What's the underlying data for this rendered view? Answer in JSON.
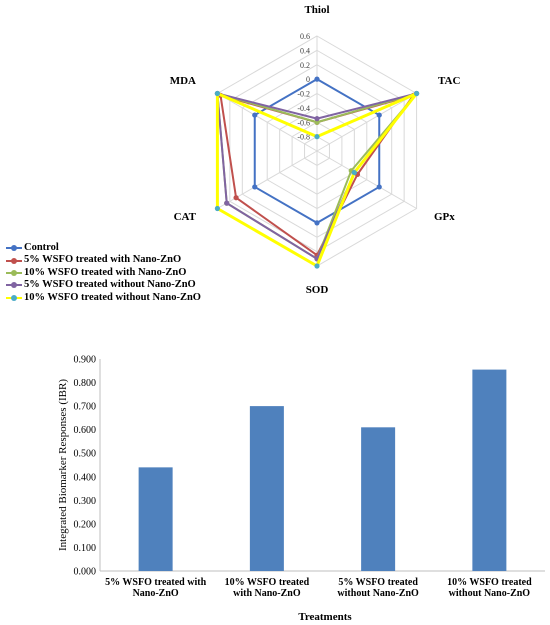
{
  "colors": {
    "control": "#4472C4",
    "nano5": "#C0504D",
    "nano10": "#9BBB59",
    "without5": "#8064A2",
    "without10": "#FFFF00",
    "marker": "#4BACC6",
    "bar": "#4F81BD",
    "grid": "#D9D9D9"
  },
  "chart_data": [
    {
      "type": "radar",
      "axes": [
        "Thiol",
        "TAC",
        "GPx",
        "SOD",
        "CAT",
        "MDA"
      ],
      "ticks": [
        "0.6",
        "0.4",
        "0.2",
        "0",
        "-0.2",
        "-0.4",
        "-0.6",
        "-0.8"
      ],
      "rlim": [
        -1,
        0.6
      ],
      "legend_position": "bottom-left",
      "series": [
        {
          "name": "Control",
          "values": [
            0,
            0,
            0,
            0,
            0,
            0
          ]
        },
        {
          "name": "5% WSFO treated with Nano-ZnO",
          "values": [
            -0.6,
            0.55,
            -0.35,
            0.45,
            0.3,
            0.55
          ]
        },
        {
          "name": "10% WSFO treated with Nano-ZnO",
          "values": [
            -0.6,
            0.6,
            -0.45,
            0.5,
            0.45,
            0.6
          ]
        },
        {
          "name": "5% WSFO treated without Nano-ZnO",
          "values": [
            -0.55,
            0.6,
            -0.4,
            0.5,
            0.45,
            0.6
          ]
        },
        {
          "name": "10% WSFO treated without Nano-ZnO",
          "values": [
            -0.8,
            0.6,
            -0.4,
            0.6,
            0.6,
            0.6
          ]
        }
      ]
    },
    {
      "type": "bar",
      "categories": [
        [
          "5% WSFO treated with",
          "Nano-ZnO"
        ],
        [
          "10% WSFO treated",
          "with Nano-ZnO"
        ],
        [
          "5% WSFO treated",
          "without Nano-ZnO"
        ],
        [
          "10% WSFO treated",
          "without Nano-ZnO"
        ]
      ],
      "values": [
        0.44,
        0.7,
        0.61,
        0.855
      ],
      "xlabel": "Treatments",
      "ylabel": "Integrated Biomarker Responses (IBR)",
      "ylim": [
        0,
        0.9
      ],
      "yticks": [
        "0.000",
        "0.100",
        "0.200",
        "0.300",
        "0.400",
        "0.500",
        "0.600",
        "0.700",
        "0.800",
        "0.900"
      ]
    }
  ]
}
